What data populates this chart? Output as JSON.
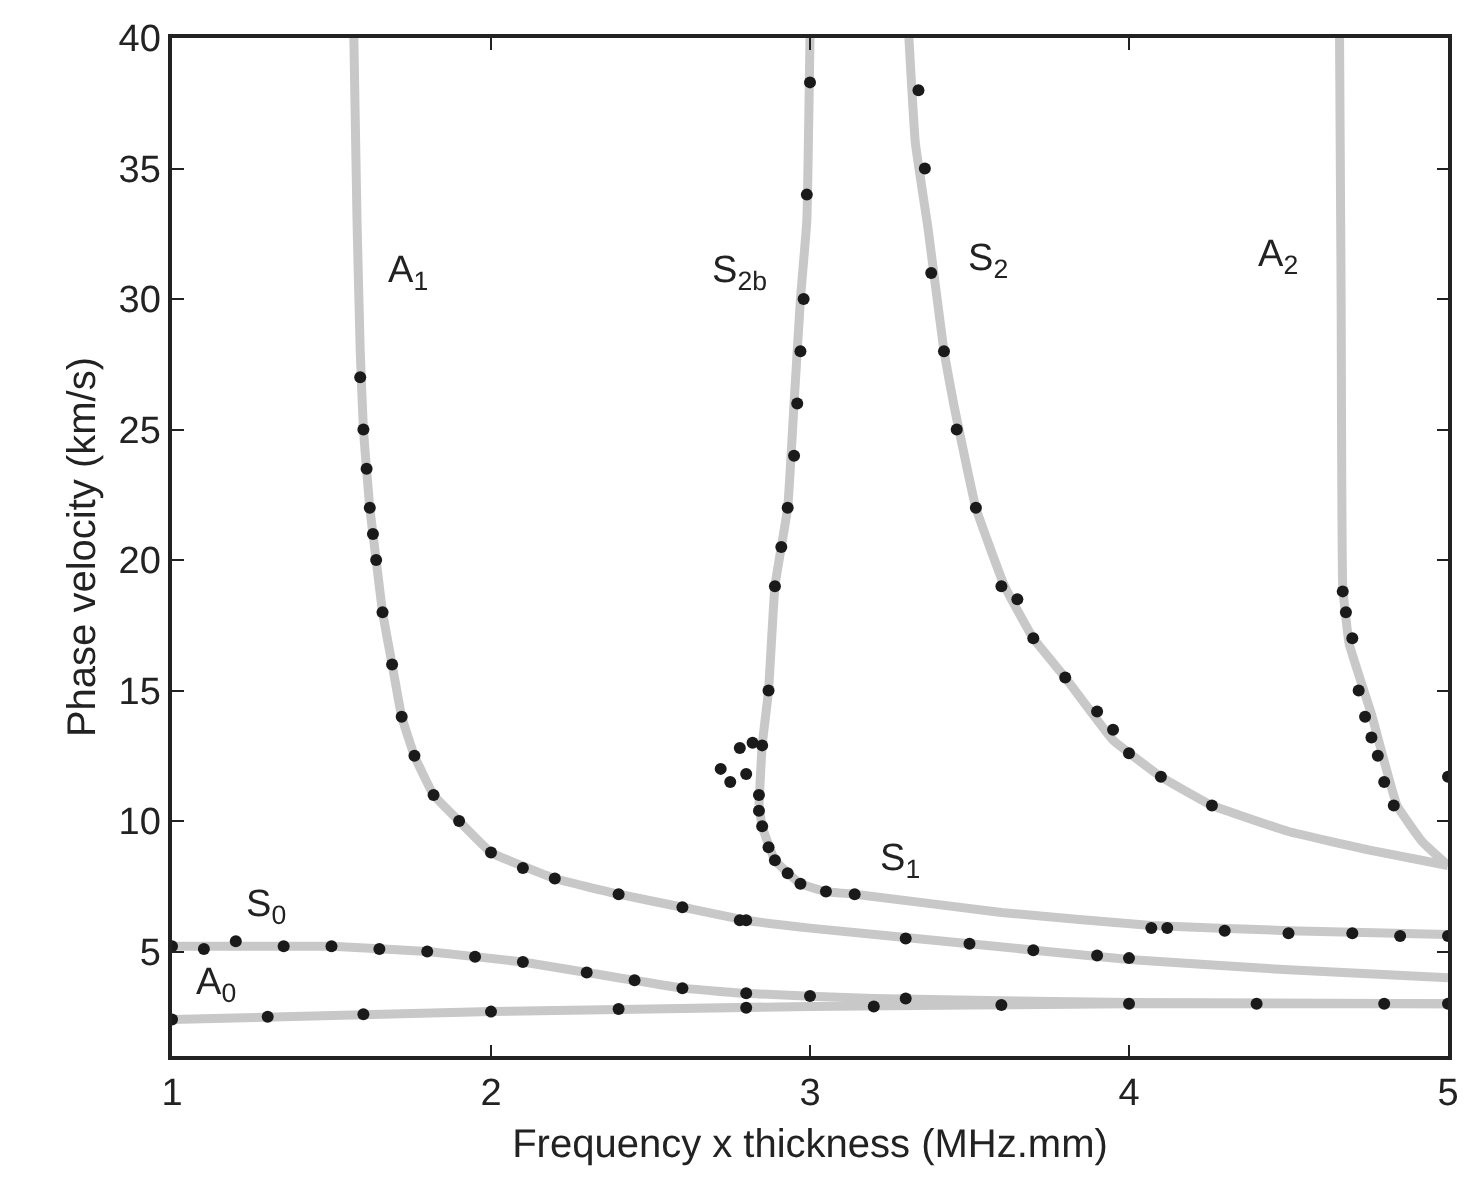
{
  "chart_data": {
    "type": "scatter",
    "xlabel": "Frequency x thickness (MHz.mm)",
    "ylabel": "Phase velocity (km/s)",
    "xlim": [
      1,
      5
    ],
    "xticks": [
      1,
      2,
      3,
      4,
      5
    ],
    "ylim": [
      1,
      40
    ],
    "yticks": [
      5,
      10,
      15,
      20,
      25,
      30,
      35,
      40
    ],
    "series": [
      {
        "type": "line",
        "color": "#c8c8c8",
        "x": [
          1,
          2,
          3,
          4,
          5
        ],
        "values": [
          2.4,
          2.7,
          2.9,
          3.0,
          3.0
        ]
      },
      {
        "type": "line",
        "color": "#c8c8c8",
        "x": [
          1,
          1.5,
          1.8,
          2.1,
          2.3,
          2.6,
          2.8,
          3.2,
          4,
          5
        ],
        "values": [
          5.2,
          5.2,
          5.0,
          4.6,
          4.2,
          3.6,
          3.4,
          3.2,
          3.05,
          3.0
        ]
      },
      {
        "type": "line",
        "color": "#c8c8c8",
        "x": [
          1.57,
          1.58,
          1.59,
          1.6,
          1.62,
          1.64,
          1.66,
          1.69,
          1.72,
          1.76,
          1.82,
          1.9,
          2.0,
          2.2,
          2.4,
          2.6,
          2.8,
          3.0,
          3.5,
          4.0,
          4.5,
          5
        ],
        "values": [
          40,
          33,
          28,
          25,
          22,
          20,
          18,
          16,
          14,
          12.5,
          11,
          10,
          8.8,
          7.8,
          7.2,
          6.7,
          6.2,
          5.9,
          5.3,
          4.7,
          4.3,
          4.0
        ]
      },
      {
        "type": "line",
        "color": "#c8c8c8",
        "x": [
          2.84,
          2.85,
          2.89,
          2.97,
          3.05,
          3.14,
          3.6,
          4.07,
          4.5,
          5
        ],
        "values": [
          10.6,
          9.8,
          8.5,
          7.6,
          7.3,
          7.2,
          6.5,
          6.0,
          5.8,
          5.65
        ]
      },
      {
        "type": "line",
        "color": "#c8c8c8",
        "x": [
          2.84,
          2.85,
          2.87,
          2.89,
          2.93,
          2.95,
          2.97,
          2.99,
          3.0
        ],
        "values": [
          10.6,
          12.9,
          15,
          19,
          22,
          26,
          30,
          33,
          40
        ]
      },
      {
        "type": "line",
        "color": "#c8c8c8",
        "x": [
          3.31,
          3.33,
          3.37,
          3.42,
          3.45,
          3.52,
          3.61,
          3.7,
          3.8,
          3.95,
          4.1,
          4.26,
          4.5,
          4.75,
          5
        ],
        "values": [
          40,
          36,
          32.7,
          28,
          26,
          22,
          19,
          17,
          15.5,
          13.1,
          11.7,
          10.6,
          9.6,
          8.9,
          8.3
        ]
      },
      {
        "type": "line",
        "color": "#c8c8c8",
        "x": [
          4.66,
          4.665,
          4.67,
          4.69,
          4.76,
          4.84,
          4.92,
          5
        ],
        "values": [
          40,
          30,
          19,
          16.8,
          14.1,
          10.6,
          9.2,
          8.3
        ]
      },
      {
        "color": "#1a1a1a",
        "x": [
          1,
          1.3,
          1.6,
          2,
          2.4,
          2.8,
          3.2,
          3.6,
          4,
          4.4,
          4.8,
          5
        ],
        "values": [
          2.4,
          2.5,
          2.6,
          2.7,
          2.8,
          2.85,
          2.9,
          2.95,
          3.0,
          3.0,
          3.0,
          3.0
        ]
      },
      {
        "color": "#1a1a1a",
        "x": [
          1,
          1.1,
          1.2,
          1.35,
          1.5,
          1.65,
          1.8,
          1.95,
          2.1,
          2.3,
          2.45,
          2.6,
          2.8,
          3.0,
          3.3
        ],
        "values": [
          5.2,
          5.1,
          5.4,
          5.2,
          5.2,
          5.1,
          5.0,
          4.8,
          4.6,
          4.2,
          3.9,
          3.6,
          3.4,
          3.3,
          3.2
        ]
      },
      {
        "color": "#1a1a1a",
        "x": [
          1.59,
          1.6,
          1.61,
          1.62,
          1.63,
          1.64,
          1.66,
          1.69,
          1.72,
          1.76,
          1.82,
          1.9,
          2.0,
          2.1,
          2.2,
          2.4,
          2.6,
          2.8,
          2.78,
          3.3,
          3.5,
          3.7,
          3.9,
          4.0
        ],
        "values": [
          27,
          25,
          23.5,
          22,
          21,
          20,
          18,
          16,
          14,
          12.5,
          11,
          10,
          8.8,
          8.2,
          7.8,
          7.2,
          6.7,
          6.2,
          6.2,
          5.5,
          5.3,
          5.05,
          4.85,
          4.75
        ]
      },
      {
        "color": "#1a1a1a",
        "x": [
          2.84,
          2.85,
          2.87,
          2.89,
          2.93,
          2.97,
          3.05,
          3.14,
          4.07,
          4.12,
          4.3,
          4.5,
          4.7,
          4.85,
          5
        ],
        "values": [
          10.4,
          9.8,
          9.0,
          8.5,
          8.0,
          7.6,
          7.3,
          7.2,
          5.9,
          5.9,
          5.8,
          5.7,
          5.7,
          5.6,
          5.6
        ]
      },
      {
        "color": "#1a1a1a",
        "x": [
          2.72,
          2.75,
          2.78,
          2.8,
          2.82,
          2.84,
          2.85,
          2.87,
          2.89,
          2.91,
          2.93,
          2.95,
          2.96,
          2.97,
          2.98,
          2.99,
          3.0
        ],
        "values": [
          12,
          11.5,
          12.8,
          11.8,
          13,
          11,
          12.9,
          15,
          19,
          20.5,
          22,
          24,
          26,
          28,
          30,
          34,
          38.3
        ]
      },
      {
        "color": "#1a1a1a",
        "x": [
          3.34,
          3.36,
          3.38,
          3.42,
          3.46,
          3.52,
          3.6,
          3.65,
          3.7,
          3.8,
          3.9,
          3.95,
          4.0,
          4.1,
          4.26
        ],
        "values": [
          38,
          35,
          31,
          28,
          25,
          22,
          19,
          18.5,
          17,
          15.5,
          14.2,
          13.5,
          12.6,
          11.7,
          10.6
        ]
      },
      {
        "color": "#1a1a1a",
        "x": [
          4.67,
          4.68,
          4.7,
          4.72,
          4.74,
          4.76,
          4.78,
          4.8,
          4.83,
          5
        ],
        "values": [
          18.8,
          18,
          17,
          15,
          14,
          13.2,
          12.5,
          11.5,
          10.6,
          11.7
        ]
      }
    ],
    "annotations": [
      "A$_{1}$",
      "S$_{2b}$",
      "S$_{2}$",
      "A$_{2}$",
      "S$_{1}$",
      "S$_{0}$",
      "A$_{0}$"
    ]
  }
}
